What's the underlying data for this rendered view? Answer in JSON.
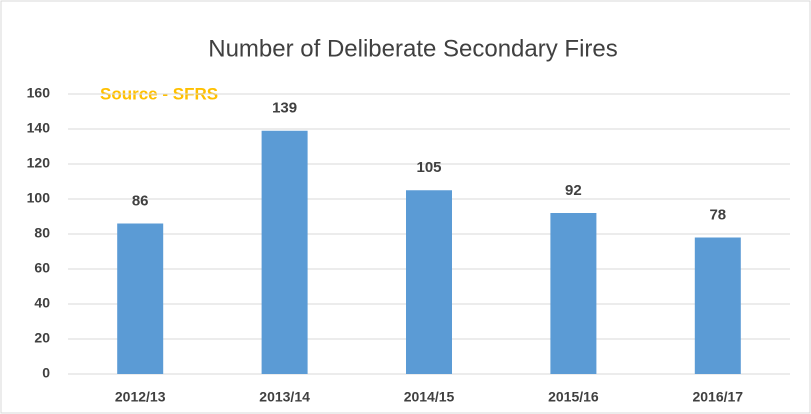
{
  "chart_data": {
    "type": "bar",
    "title": "Number of Deliberate Secondary Fires",
    "annotation": "Source - SFRS",
    "categories": [
      "2012/13",
      "2013/14",
      "2014/15",
      "2015/16",
      "2016/17"
    ],
    "values": [
      86,
      139,
      105,
      92,
      78
    ],
    "color": "#5b9bd5",
    "ylim": [
      0,
      160
    ],
    "yticks": [
      0,
      20,
      40,
      60,
      80,
      100,
      120,
      140,
      160
    ],
    "grid": true
  }
}
